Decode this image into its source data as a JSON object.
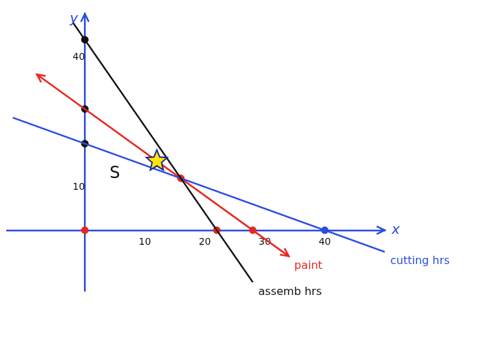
{
  "chart_data": {
    "type": "line",
    "x_label": "x",
    "y_label": "y",
    "series": [
      {
        "name": "assemb hrs",
        "color": "#111111",
        "x": [
          -2,
          28
        ],
        "values": [
          48,
          -12
        ]
      },
      {
        "name": "cutting hrs",
        "color": "#2a4de0",
        "x": [
          -12,
          50
        ],
        "values": [
          26,
          -5
        ]
      },
      {
        "name": "paint",
        "color": "#e8261f",
        "x": [
          -8,
          34
        ],
        "values": [
          36,
          -6
        ],
        "marker": "arrow"
      }
    ],
    "points": {
      "x": [
        0,
        0,
        0,
        0,
        22,
        28,
        40,
        16
      ],
      "y": [
        0,
        44,
        28,
        20,
        0,
        0,
        0,
        12
      ],
      "colors": [
        "#e8261f",
        "#111111",
        "#111111",
        "#111111",
        "#e8261f",
        "#e8261f",
        "#2a4de0",
        "#e8261f"
      ]
    },
    "optimum": {
      "x": 12,
      "y": 16,
      "marker": "star",
      "color": "#ffe600"
    },
    "annotations": [
      {
        "text": "S",
        "x": 5,
        "y": 13
      }
    ],
    "xlim": [
      -13,
      50
    ],
    "ylim": [
      -14,
      50
    ],
    "xticks": [
      10,
      20,
      30,
      40
    ],
    "yticks": [
      10,
      40
    ],
    "grid": false
  }
}
